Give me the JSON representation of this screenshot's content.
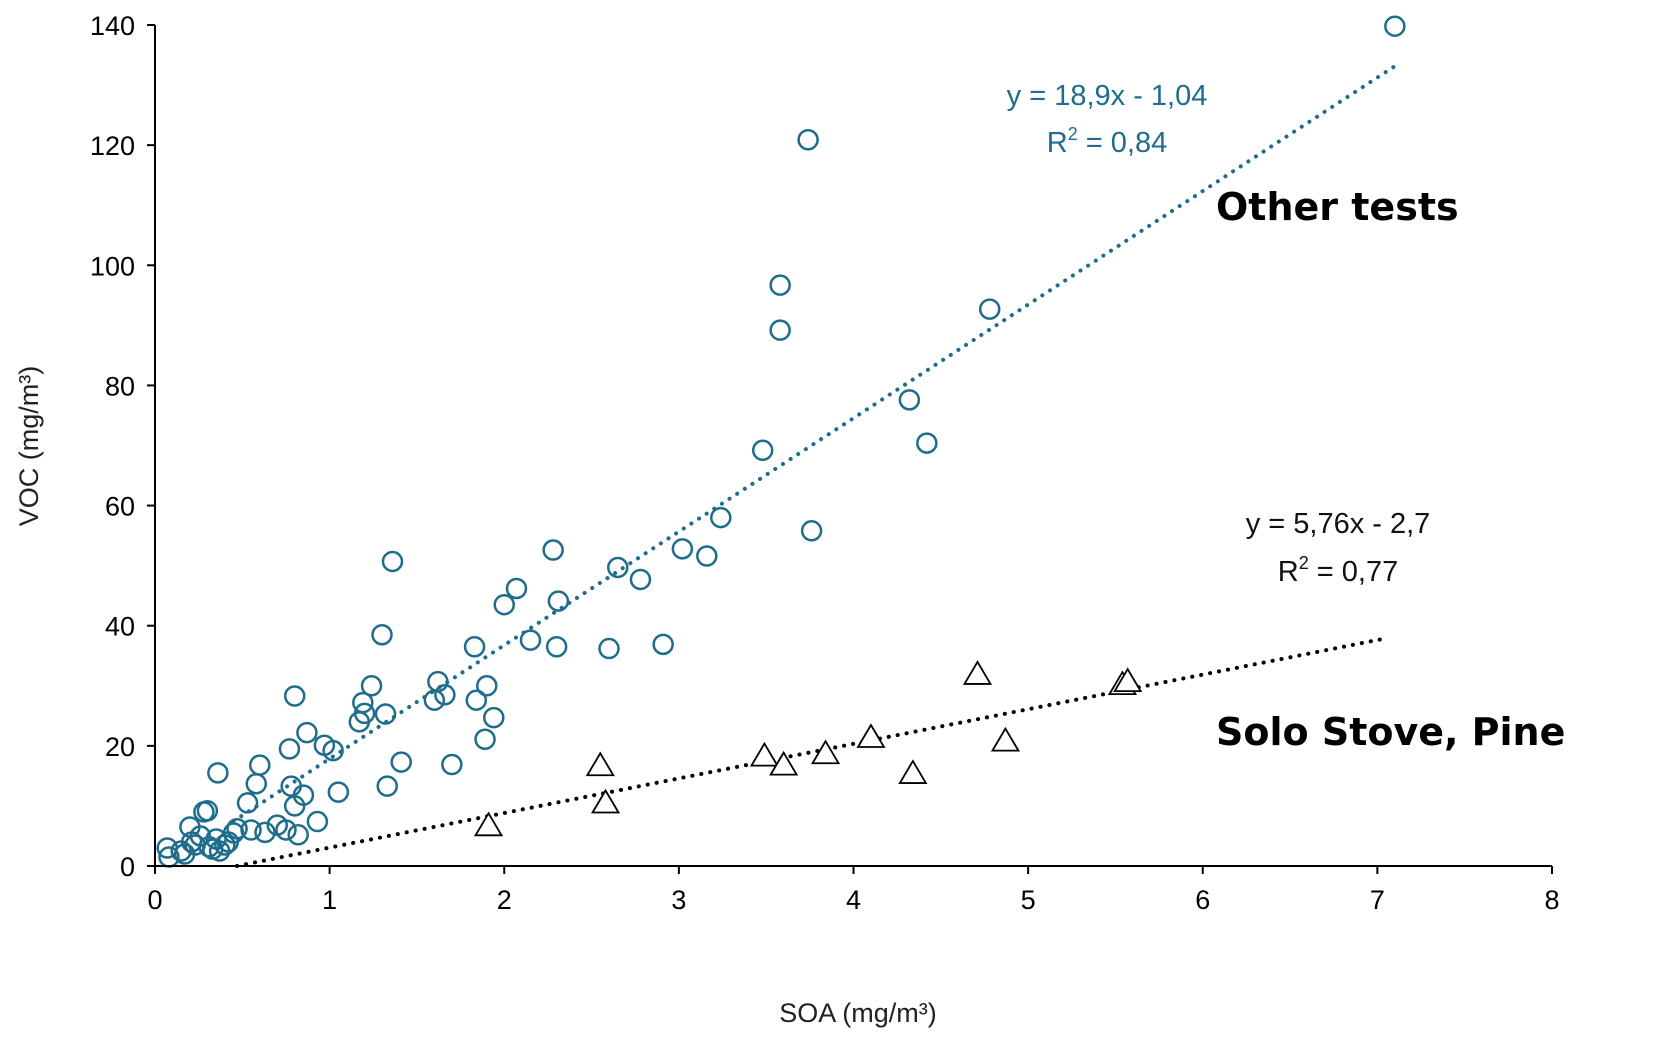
{
  "chart_data": {
    "type": "scatter",
    "xlabel": "SOA (mg/m³)",
    "ylabel": "VOC (mg/m³)",
    "xlim": [
      0,
      8
    ],
    "ylim": [
      0,
      140
    ],
    "x_ticks": [
      "0",
      "1",
      "2",
      "3",
      "4",
      "5",
      "6",
      "7",
      "8"
    ],
    "y_ticks": [
      "0",
      "20",
      "40",
      "60",
      "80",
      "100",
      "120",
      "140"
    ],
    "grid": false,
    "series": [
      {
        "name": "Other tests",
        "marker": "circle",
        "color": "#1f6d8c",
        "trendline": {
          "slope": 18.9,
          "intercept": -1.04,
          "x_range": [
            0.45,
            7.1
          ],
          "equation": "y = 18,9x - 1,04",
          "r2_label": "R",
          "r2_value": " = 0,84",
          "style": "dotted"
        },
        "points": [
          [
            0.07,
            3.0
          ],
          [
            0.08,
            1.5
          ],
          [
            0.15,
            2.5
          ],
          [
            0.17,
            2.0
          ],
          [
            0.2,
            6.5
          ],
          [
            0.21,
            4.0
          ],
          [
            0.23,
            3.5
          ],
          [
            0.26,
            5.0
          ],
          [
            0.28,
            9.0
          ],
          [
            0.3,
            9.2
          ],
          [
            0.31,
            3.2
          ],
          [
            0.33,
            2.8
          ],
          [
            0.35,
            4.5
          ],
          [
            0.36,
            15.5
          ],
          [
            0.37,
            2.5
          ],
          [
            0.4,
            3.5
          ],
          [
            0.42,
            4.0
          ],
          [
            0.45,
            5.5
          ],
          [
            0.47,
            6.2
          ],
          [
            0.53,
            10.5
          ],
          [
            0.55,
            6.0
          ],
          [
            0.58,
            13.7
          ],
          [
            0.6,
            16.8
          ],
          [
            0.63,
            5.6
          ],
          [
            0.7,
            6.8
          ],
          [
            0.75,
            6.0
          ],
          [
            0.77,
            19.5
          ],
          [
            0.78,
            13.3
          ],
          [
            0.8,
            28.3
          ],
          [
            0.8,
            10.0
          ],
          [
            0.82,
            5.2
          ],
          [
            0.85,
            11.8
          ],
          [
            0.87,
            22.2
          ],
          [
            0.93,
            7.4
          ],
          [
            0.97,
            20.1
          ],
          [
            1.02,
            19.2
          ],
          [
            1.05,
            12.3
          ],
          [
            1.17,
            24.0
          ],
          [
            1.19,
            27.2
          ],
          [
            1.2,
            25.4
          ],
          [
            1.24,
            30.0
          ],
          [
            1.3,
            38.5
          ],
          [
            1.32,
            25.3
          ],
          [
            1.33,
            13.3
          ],
          [
            1.36,
            50.7
          ],
          [
            1.41,
            17.3
          ],
          [
            1.6,
            27.6
          ],
          [
            1.62,
            30.7
          ],
          [
            1.66,
            28.5
          ],
          [
            1.7,
            16.9
          ],
          [
            1.83,
            36.5
          ],
          [
            1.84,
            27.6
          ],
          [
            1.89,
            21.1
          ],
          [
            1.9,
            30.0
          ],
          [
            1.94,
            24.7
          ],
          [
            2.0,
            43.5
          ],
          [
            2.07,
            46.2
          ],
          [
            2.15,
            37.6
          ],
          [
            2.28,
            52.6
          ],
          [
            2.3,
            36.5
          ],
          [
            2.31,
            44.1
          ],
          [
            2.6,
            36.2
          ],
          [
            2.65,
            49.7
          ],
          [
            2.78,
            47.7
          ],
          [
            2.91,
            36.9
          ],
          [
            3.02,
            52.8
          ],
          [
            3.16,
            51.6
          ],
          [
            3.24,
            58.0
          ],
          [
            3.48,
            69.2
          ],
          [
            3.58,
            96.7
          ],
          [
            3.58,
            89.2
          ],
          [
            3.74,
            120.9
          ],
          [
            3.76,
            55.8
          ],
          [
            4.32,
            77.6
          ],
          [
            4.42,
            70.4
          ],
          [
            4.78,
            92.7
          ],
          [
            7.1,
            139.8
          ]
        ]
      },
      {
        "name": "Solo Stove, Pine",
        "marker": "triangle",
        "color": "#000000",
        "trendline": {
          "slope": 5.76,
          "intercept": -2.7,
          "x_range": [
            0.47,
            7.05
          ],
          "equation": "y = 5,76x - 2,7",
          "r2_label": "R",
          "r2_value": " = 0,77",
          "style": "dotted"
        },
        "points": [
          [
            1.91,
            6.5
          ],
          [
            2.55,
            16.5
          ],
          [
            2.58,
            10.3
          ],
          [
            3.49,
            18.1
          ],
          [
            3.6,
            16.6
          ],
          [
            3.84,
            18.5
          ],
          [
            4.1,
            21.2
          ],
          [
            4.34,
            15.2
          ],
          [
            4.71,
            31.7
          ],
          [
            4.87,
            20.6
          ],
          [
            5.54,
            30.0
          ],
          [
            5.57,
            30.5
          ]
        ]
      }
    ]
  }
}
